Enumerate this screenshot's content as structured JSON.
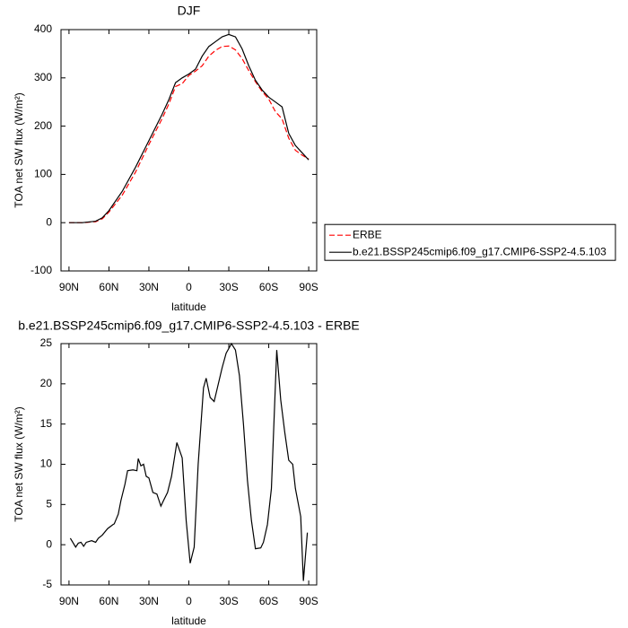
{
  "chart_data": [
    {
      "type": "line",
      "title": "DJF",
      "xlabel": "latitude",
      "ylabel": "TOA net SW flux (W/m²)",
      "x": [
        90,
        80,
        70,
        65,
        60,
        50,
        40,
        30,
        20,
        15,
        10,
        5,
        0,
        -5,
        -10,
        -15,
        -20,
        -25,
        -30,
        -35,
        -40,
        -45,
        -50,
        -55,
        -60,
        -65,
        -70,
        -75,
        -80,
        -85,
        -90
      ],
      "series": [
        {
          "name": "ERBE",
          "color": "#ff0000",
          "line_style": "dashed",
          "values": [
            0,
            0,
            2,
            8,
            22,
            57,
            105,
            162,
            216,
            246,
            282,
            288,
            305,
            314,
            325,
            345,
            357,
            365,
            366,
            358,
            340,
            315,
            292,
            272,
            256,
            230,
            215,
            175,
            150,
            140,
            132
          ]
        },
        {
          "name": "b.e21.BSSP245cmip6.f09_g17.CMIP6-SSP2-4.5.103",
          "color": "#000000",
          "line_style": "solid",
          "values": [
            0,
            0,
            3,
            10,
            25,
            65,
            115,
            170,
            225,
            255,
            290,
            300,
            308,
            318,
            345,
            365,
            375,
            385,
            390,
            385,
            360,
            325,
            295,
            275,
            260,
            250,
            240,
            185,
            160,
            145,
            130
          ]
        }
      ],
      "xlim": [
        96,
        -96
      ],
      "xticks": [
        {
          "value": 90,
          "label": "90N"
        },
        {
          "value": 60,
          "label": "60N"
        },
        {
          "value": 30,
          "label": "30N"
        },
        0,
        {
          "value": -30,
          "label": "30S"
        },
        {
          "value": -60,
          "label": "60S"
        },
        {
          "value": -90,
          "label": "90S"
        }
      ],
      "ylim": [
        -100,
        400
      ],
      "yticks": [
        -100,
        0,
        100,
        200,
        300,
        400
      ],
      "legend": "right"
    },
    {
      "type": "line",
      "title": "b.e21.BSSP245cmip6.f09_g17.CMIP6-SSP2-4.5.103 - ERBE",
      "xlabel": "latitude",
      "ylabel": "TOA net SW flux (W/m²)",
      "x": [
        89,
        85,
        83,
        81,
        79,
        77,
        73,
        70,
        68,
        65,
        61,
        57,
        56,
        53,
        51,
        48,
        46,
        42,
        39,
        38,
        36,
        34,
        32,
        30,
        27,
        24,
        21,
        19,
        16,
        13,
        9,
        5,
        2,
        -1,
        -4,
        -7,
        -11,
        -13,
        -16,
        -19,
        -21,
        -25,
        -28,
        -32,
        -35,
        -38,
        -41,
        -44,
        -47,
        -50,
        -54,
        -56,
        -59,
        -62,
        -66,
        -69,
        -72,
        -75,
        -78,
        -80,
        -84,
        -86,
        -89
      ],
      "series": [
        {
          "color": "#000000",
          "line_style": "solid",
          "values": [
            0.8,
            -0.3,
            0.2,
            0.3,
            -0.2,
            0.3,
            0.5,
            0.3,
            0.8,
            1.2,
            2,
            2.5,
            2.6,
            3.8,
            5.5,
            7.5,
            9.2,
            9.3,
            9.2,
            10.7,
            9.8,
            10,
            8.5,
            8.3,
            6.5,
            6.3,
            4.8,
            5.5,
            6.5,
            8.5,
            12.7,
            10.8,
            3,
            -2.3,
            -0.3,
            10,
            19.5,
            20.7,
            18.3,
            17.8,
            19.2,
            22,
            23.8,
            25,
            24.2,
            21,
            15,
            8,
            3,
            -0.5,
            -0.4,
            0.3,
            2.5,
            7,
            24.2,
            18,
            14,
            10.5,
            10,
            7,
            3.5,
            -4.5,
            1.5
          ]
        }
      ],
      "xlim": [
        96,
        -96
      ],
      "xticks": [
        {
          "value": 90,
          "label": "90N"
        },
        {
          "value": 60,
          "label": "60N"
        },
        {
          "value": 30,
          "label": "30N"
        },
        0,
        {
          "value": -30,
          "label": "30S"
        },
        {
          "value": -60,
          "label": "60S"
        },
        {
          "value": -90,
          "label": "90S"
        }
      ],
      "ylim": [
        -5,
        25
      ],
      "yticks": [
        -5,
        0,
        5,
        10,
        15,
        20,
        25
      ]
    }
  ]
}
